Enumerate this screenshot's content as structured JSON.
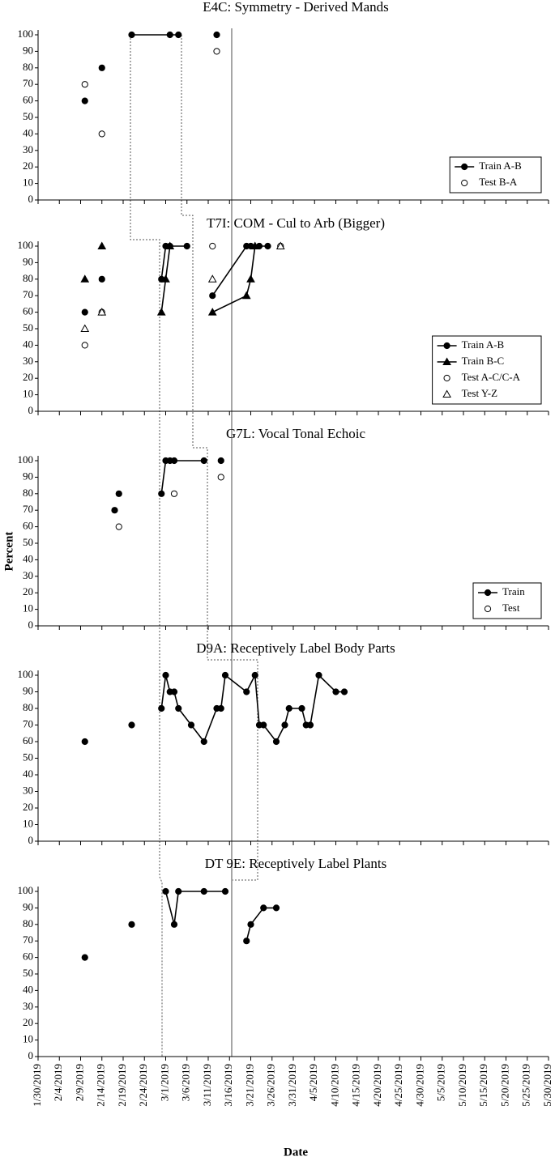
{
  "chart_data": [
    {
      "type": "line",
      "title": "E4C: Symmetry - Derived Mands",
      "xlim": [
        "1/30/2019",
        "5/30/2019"
      ],
      "ylim": [
        0,
        100
      ],
      "yticks": [
        0,
        10,
        20,
        30,
        40,
        50,
        60,
        70,
        80,
        90,
        100
      ],
      "legend": "lower right",
      "series": [
        {
          "name": "Train A-B",
          "marker": "circle",
          "filled": true,
          "line": true,
          "color": "#000000",
          "x": [
            "2/10/2019",
            null,
            "2/14/2019",
            null,
            "2/21/2019",
            "3/2/2019",
            "3/4/2019",
            null,
            "3/13/2019"
          ],
          "values": [
            60,
            null,
            80,
            null,
            100,
            100,
            100,
            null,
            100
          ]
        },
        {
          "name": "Test B-A",
          "marker": "circle",
          "filled": false,
          "line": false,
          "color": "#000000",
          "x": [
            "2/10/2019",
            "2/14/2019",
            "3/13/2019"
          ],
          "values": [
            70,
            40,
            90
          ]
        }
      ]
    },
    {
      "type": "line",
      "title": "T7I: COM - Cul to Arb (Bigger)",
      "xlim": [
        "1/30/2019",
        "5/30/2019"
      ],
      "ylim": [
        0,
        100
      ],
      "yticks": [
        0,
        10,
        20,
        30,
        40,
        50,
        60,
        70,
        80,
        90,
        100
      ],
      "legend": "lower right",
      "series": [
        {
          "name": "Train A-B",
          "marker": "circle",
          "filled": true,
          "line": true,
          "color": "#000000",
          "x": [
            "2/10/2019",
            null,
            "2/14/2019",
            null,
            "2/28/2019",
            "3/1/2019",
            "3/2/2019",
            "3/6/2019",
            null,
            "3/12/2019",
            "3/20/2019",
            "3/21/2019",
            "3/23/2019",
            "3/25/2019"
          ],
          "values": [
            60,
            null,
            80,
            null,
            80,
            100,
            100,
            100,
            null,
            70,
            100,
            100,
            100,
            100
          ]
        },
        {
          "name": "Train B-C",
          "marker": "triangle",
          "filled": true,
          "line": true,
          "color": "#000000",
          "x": [
            "2/10/2019",
            null,
            "2/14/2019",
            null,
            "2/28/2019",
            "3/1/2019",
            "3/2/2019",
            null,
            "3/12/2019",
            "3/20/2019",
            "3/21/2019",
            "3/22/2019"
          ],
          "values": [
            80,
            null,
            100,
            null,
            60,
            80,
            100,
            null,
            60,
            70,
            80,
            100
          ]
        },
        {
          "name": "Test A-C/C-A",
          "marker": "circle",
          "filled": false,
          "line": false,
          "color": "#000000",
          "x": [
            "2/10/2019",
            "2/14/2019",
            "3/12/2019",
            "3/28/2019"
          ],
          "values": [
            40,
            60,
            100,
            100
          ]
        },
        {
          "name": "Test Y-Z",
          "marker": "triangle",
          "filled": false,
          "line": false,
          "color": "#000000",
          "x": [
            "2/10/2019",
            "2/14/2019",
            "3/12/2019",
            "3/28/2019"
          ],
          "values": [
            50,
            60,
            80,
            100
          ]
        }
      ]
    },
    {
      "type": "line",
      "title": "G7L: Vocal Tonal Echoic",
      "y_label": "Percent",
      "xlim": [
        "1/30/2019",
        "5/30/2019"
      ],
      "ylim": [
        0,
        100
      ],
      "yticks": [
        0,
        10,
        20,
        30,
        40,
        50,
        60,
        70,
        80,
        90,
        100
      ],
      "legend": "lower right",
      "series": [
        {
          "name": "Train",
          "marker": "circle",
          "filled": true,
          "line": true,
          "color": "#000000",
          "x": [
            "2/17/2019",
            null,
            "2/18/2019",
            null,
            "2/28/2019",
            "3/1/2019",
            "3/2/2019",
            "3/3/2019",
            "3/10/2019",
            null,
            "3/14/2019"
          ],
          "values": [
            70,
            null,
            80,
            null,
            80,
            100,
            100,
            100,
            100,
            null,
            100
          ]
        },
        {
          "name": "Test",
          "marker": "circle",
          "filled": false,
          "line": false,
          "color": "#000000",
          "x": [
            "2/18/2019",
            "3/3/2019",
            "3/14/2019"
          ],
          "values": [
            60,
            80,
            90
          ]
        }
      ]
    },
    {
      "type": "line",
      "title": "D9A: Receptively Label Body Parts",
      "xlim": [
        "1/30/2019",
        "5/30/2019"
      ],
      "ylim": [
        0,
        100
      ],
      "yticks": [
        0,
        10,
        20,
        30,
        40,
        50,
        60,
        70,
        80,
        90,
        100
      ],
      "series": [
        {
          "marker": "circle",
          "filled": true,
          "line": true,
          "color": "#000000",
          "x": [
            "2/10/2019",
            null,
            "2/21/2019",
            null,
            "2/28/2019",
            "3/1/2019",
            "3/2/2019",
            "3/3/2019",
            "3/4/2019",
            "3/7/2019",
            "3/10/2019",
            "3/13/2019",
            "3/14/2019",
            "3/15/2019",
            "3/20/2019",
            "3/22/2019",
            "3/23/2019",
            "3/24/2019",
            "3/27/2019",
            "3/29/2019",
            "3/30/2019",
            "4/2/2019",
            "4/3/2019",
            "4/4/2019",
            "4/6/2019",
            "4/10/2019",
            "4/12/2019"
          ],
          "values": [
            60,
            null,
            70,
            null,
            80,
            100,
            90,
            90,
            80,
            70,
            60,
            80,
            80,
            100,
            90,
            100,
            70,
            70,
            60,
            70,
            80,
            80,
            70,
            70,
            100,
            90,
            90
          ]
        }
      ]
    },
    {
      "type": "line",
      "title": "DT 9E: Receptively Label Plants",
      "x_label": "Date",
      "xlim": [
        "1/30/2019",
        "5/30/2019"
      ],
      "ylim": [
        0,
        100
      ],
      "yticks": [
        0,
        10,
        20,
        30,
        40,
        50,
        60,
        70,
        80,
        90,
        100
      ],
      "xticks": [
        "1/30/2019",
        "2/4/2019",
        "2/9/2019",
        "2/14/2019",
        "2/19/2019",
        "2/24/2019",
        "3/1/2019",
        "3/6/2019",
        "3/11/2019",
        "3/16/2019",
        "3/21/2019",
        "3/26/2019",
        "3/31/2019",
        "4/5/2019",
        "4/10/2019",
        "4/15/2019",
        "4/20/2019",
        "4/25/2019",
        "4/30/2019",
        "5/5/2019",
        "5/10/2019",
        "5/15/2019",
        "5/20/2019",
        "5/25/2019",
        "5/30/2019"
      ],
      "series": [
        {
          "marker": "circle",
          "filled": true,
          "line": true,
          "color": "#000000",
          "x": [
            "2/10/2019",
            null,
            "2/21/2019",
            null,
            "3/1/2019",
            "3/3/2019",
            "3/4/2019",
            "3/10/2019",
            "3/15/2019",
            null,
            "3/20/2019",
            "3/21/2019",
            "3/24/2019",
            "3/27/2019"
          ],
          "values": [
            60,
            null,
            80,
            null,
            100,
            80,
            100,
            100,
            100,
            null,
            70,
            80,
            90,
            90
          ]
        }
      ]
    }
  ]
}
